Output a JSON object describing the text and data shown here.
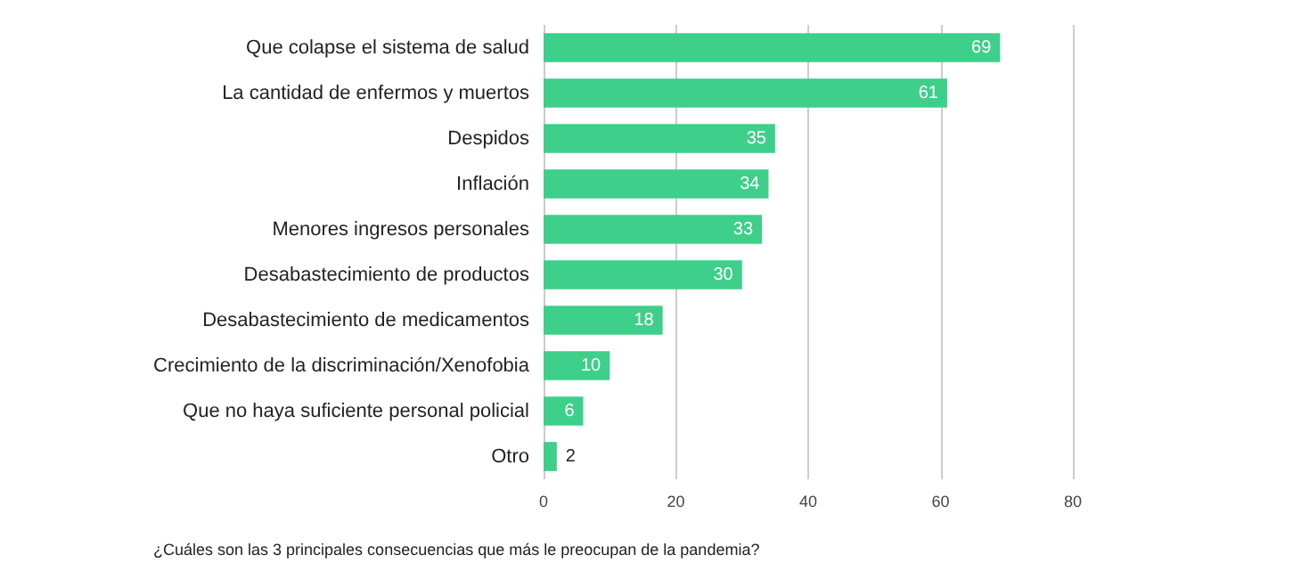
{
  "chart_data": {
    "type": "bar",
    "orientation": "horizontal",
    "categories": [
      "Que colapse el sistema de salud",
      "La cantidad de enfermos y muertos",
      "Despidos",
      "Inflación",
      "Menores ingresos personales",
      "Desabastecimiento de productos",
      "Desabastecimiento de medicamentos",
      "Crecimiento de la discriminación/Xenofobia",
      "Que no haya suficiente personal policial",
      "Otro"
    ],
    "values": [
      69,
      61,
      35,
      34,
      33,
      30,
      18,
      10,
      6,
      2
    ],
    "color": "#3ecf8a",
    "xlim": [
      0,
      80
    ],
    "xticks": [
      0,
      20,
      40,
      60,
      80
    ],
    "grid": "x",
    "data_labels": true,
    "annotations": [
      "¿Cuáles son las 3 principales consecuencias que más le preocupan de la pandemia?"
    ]
  }
}
